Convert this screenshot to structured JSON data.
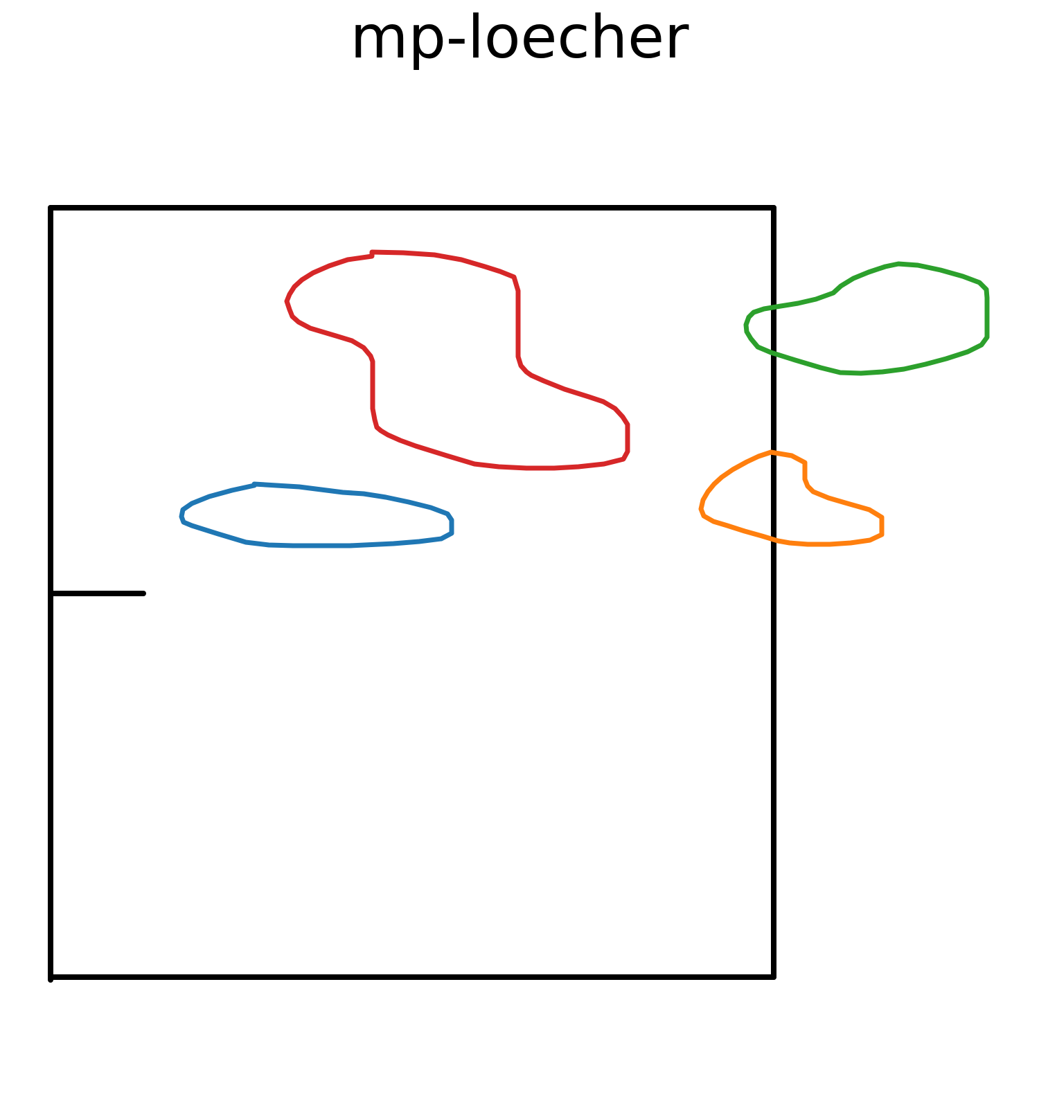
{
  "title": "mp-loecher",
  "colors": {
    "frame": "#000000",
    "shape_red": "#d62728",
    "shape_green": "#2ca02c",
    "shape_blue": "#1f77b4",
    "shape_orange": "#ff7f0e"
  }
}
